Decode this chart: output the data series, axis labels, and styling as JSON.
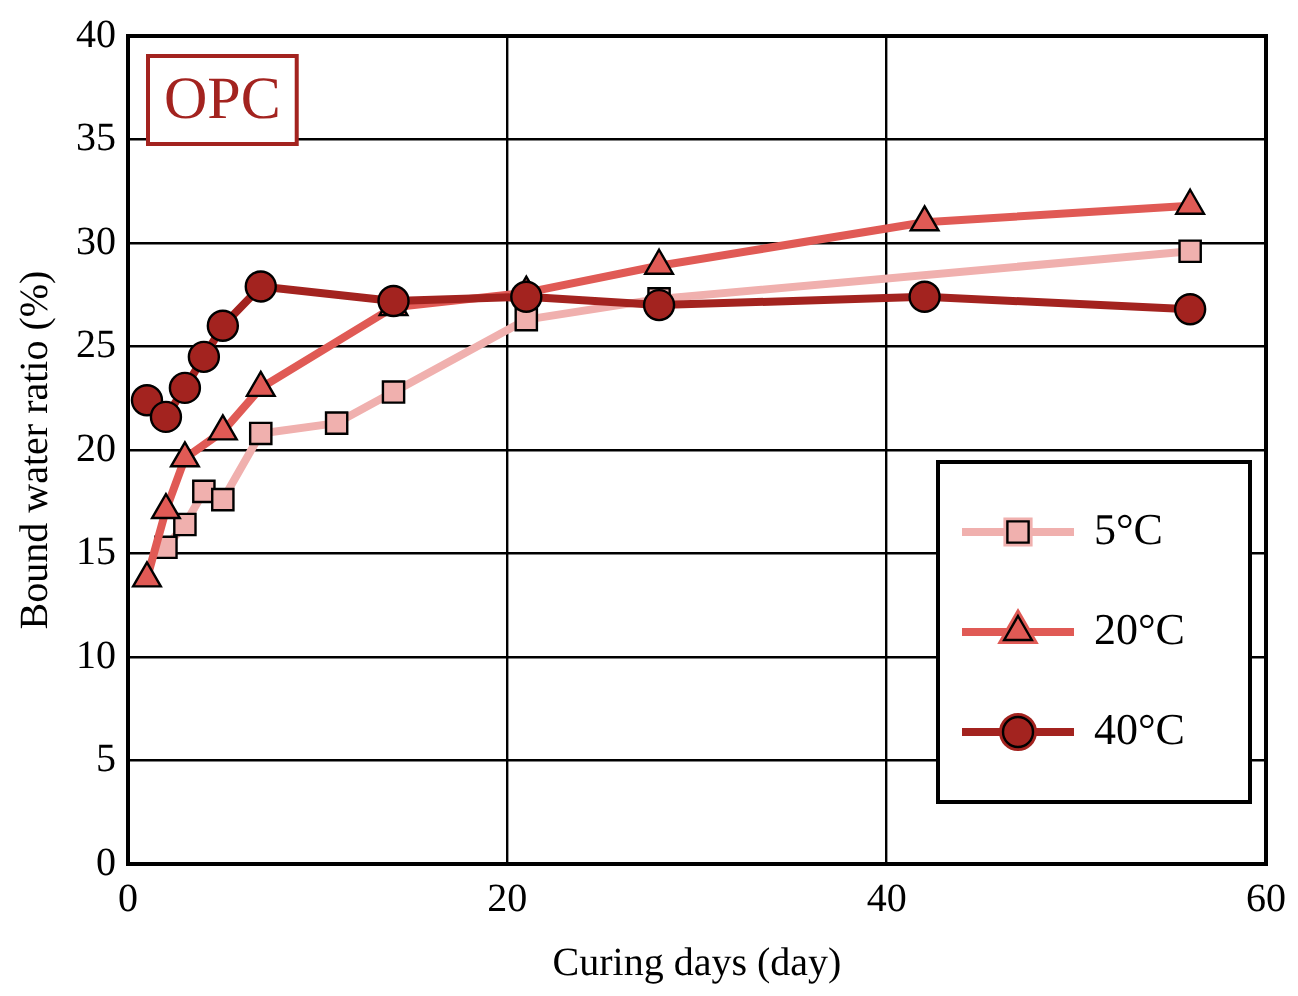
{
  "chart_data": {
    "type": "line",
    "xlabel": "Curing days (day)",
    "ylabel": "Bound water ratio (%)",
    "annotations": [
      "OPC"
    ],
    "xlim": [
      0,
      60
    ],
    "xticks": [
      0,
      20,
      40,
      60
    ],
    "ylim": [
      0,
      40
    ],
    "yticks": [
      0,
      5,
      10,
      15,
      20,
      25,
      30,
      35,
      40
    ],
    "grid": true,
    "legend": "right",
    "series": [
      {
        "name": "5°C",
        "color": "#f0b0ae",
        "marker": "square",
        "x": [
          2,
          3,
          4,
          5,
          7,
          11,
          14,
          21,
          28,
          56
        ],
        "values": [
          15.3,
          16.4,
          18,
          17.6,
          20.8,
          21.3,
          22.8,
          26.3,
          27.3,
          29.6
        ]
      },
      {
        "name": "20°C",
        "color": "#e05a55",
        "marker": "triangle",
        "x": [
          1,
          2,
          3,
          5,
          7,
          14,
          21,
          28,
          42,
          56
        ],
        "values": [
          13.8,
          17.1,
          19.6,
          20.9,
          23,
          26.9,
          27.6,
          28.9,
          31,
          31.8
        ]
      },
      {
        "name": "40°C",
        "color": "#a3231f",
        "marker": "circle",
        "x": [
          1,
          2,
          3,
          4,
          5,
          7,
          14,
          21,
          28,
          42,
          56
        ],
        "values": [
          22.4,
          21.6,
          23,
          24.5,
          26,
          27.9,
          27.2,
          27.4,
          27,
          27.4,
          26.8
        ]
      }
    ]
  }
}
